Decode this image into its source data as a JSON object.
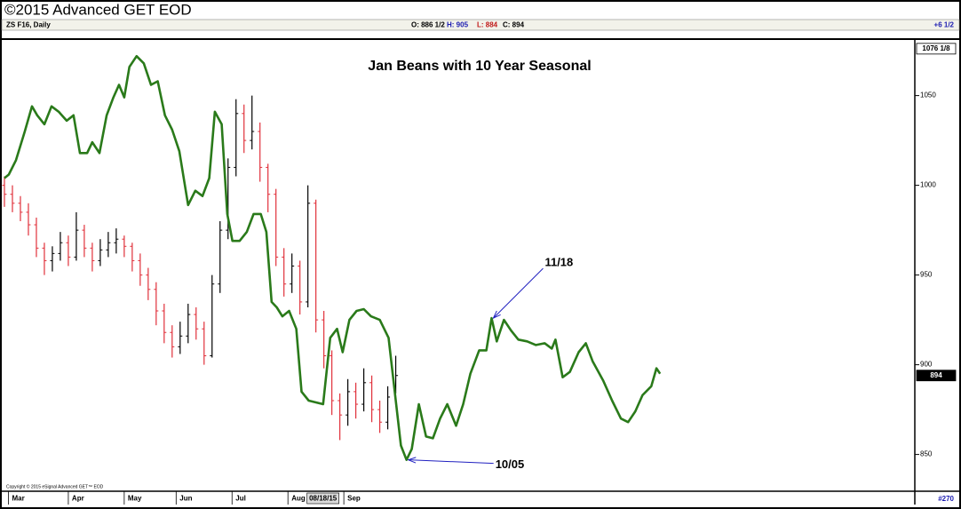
{
  "header": {
    "title": "©2015 Advanced GET EOD",
    "symbol": "ZS F16, Daily",
    "quote": [
      "O: 886 1/2",
      "H: 905",
      "L: 884",
      "C: 894"
    ],
    "quote_colors": [
      "#000000",
      "#1a1ab0",
      "#c01818",
      "#000000"
    ],
    "change": "+6 1/2",
    "bar_count": "#270",
    "copyright": "Copyright © 2015 eSignal Advanced GET™ EOD"
  },
  "chart_data": {
    "type": "ohlc",
    "title": "Jan Beans with 10 Year Seasonal",
    "xlim": [
      0,
      228
    ],
    "xticks": [
      {
        "value": 1,
        "label": "Mar"
      },
      {
        "value": 16,
        "label": "Apr"
      },
      {
        "value": 30,
        "label": "May"
      },
      {
        "value": 43,
        "label": "Jun"
      },
      {
        "value": 57,
        "label": "Jul"
      },
      {
        "value": 71,
        "label": "Aug"
      },
      {
        "value": 85,
        "label": "Sep"
      }
    ],
    "cursor_date": {
      "value": 76,
      "label": "08/18/15"
    },
    "ylim": [
      830,
      1081
    ],
    "yticks": [
      850,
      900,
      950,
      1000,
      1050
    ],
    "price_markers": [
      {
        "value": 1076.125,
        "label": "1076 1/8"
      },
      {
        "value": 894,
        "label": "894"
      }
    ],
    "ohlc": {
      "up_color": "#000000",
      "down_color": "#e0303a",
      "x": [
        0,
        2,
        4,
        6,
        8,
        10,
        12,
        14,
        16,
        18,
        20,
        22,
        24,
        26,
        28,
        30,
        32,
        34,
        36,
        38,
        40,
        42,
        44,
        46,
        48,
        50,
        52,
        54,
        56,
        58,
        60,
        62,
        64,
        66,
        68,
        70,
        72,
        74,
        76,
        78,
        80,
        82,
        84,
        86,
        88,
        90,
        92,
        94,
        96,
        98
      ],
      "open": [
        1000,
        995,
        990,
        985,
        978,
        965,
        958,
        962,
        968,
        960,
        975,
        965,
        958,
        964,
        968,
        970,
        966,
        958,
        950,
        942,
        930,
        918,
        910,
        916,
        928,
        920,
        905,
        945,
        975,
        1010,
        1040,
        1025,
        1030,
        1010,
        995,
        960,
        945,
        955,
        935,
        990,
        925,
        905,
        880,
        872,
        885,
        878,
        890,
        875,
        868,
        886.5
      ],
      "high": [
        1005,
        1000,
        994,
        990,
        982,
        968,
        966,
        974,
        972,
        985,
        978,
        968,
        970,
        974,
        976,
        972,
        968,
        962,
        954,
        946,
        934,
        922,
        924,
        934,
        932,
        924,
        950,
        980,
        1015,
        1048,
        1045,
        1050,
        1035,
        1012,
        998,
        965,
        962,
        958,
        1000,
        992,
        930,
        908,
        884,
        892,
        890,
        898,
        894,
        880,
        888,
        905
      ],
      "low": [
        988,
        985,
        980,
        972,
        960,
        950,
        952,
        958,
        955,
        958,
        960,
        952,
        955,
        960,
        962,
        960,
        952,
        944,
        936,
        922,
        912,
        904,
        906,
        912,
        914,
        900,
        904,
        940,
        970,
        1005,
        1018,
        1020,
        1002,
        985,
        955,
        938,
        940,
        928,
        932,
        918,
        898,
        872,
        858,
        866,
        870,
        874,
        868,
        862,
        864,
        884
      ],
      "close": [
        995,
        990,
        985,
        978,
        965,
        958,
        962,
        968,
        960,
        975,
        965,
        958,
        964,
        968,
        970,
        966,
        958,
        950,
        942,
        930,
        918,
        910,
        916,
        928,
        920,
        905,
        945,
        975,
        1010,
        1040,
        1025,
        1030,
        1010,
        995,
        960,
        945,
        955,
        935,
        990,
        925,
        905,
        880,
        872,
        885,
        878,
        890,
        875,
        868,
        882,
        894
      ]
    },
    "seasonal": {
      "color": "#2a7a1a",
      "x": [
        0,
        1.1,
        2.9,
        5.1,
        6.9,
        8.2,
        10,
        11.8,
        13.6,
        15.6,
        17.3,
        18.9,
        20.7,
        22,
        23.8,
        25.6,
        27.3,
        28.7,
        30,
        31.3,
        33.1,
        34.9,
        36.7,
        38.4,
        40.2,
        42,
        43.8,
        46,
        47.8,
        49.6,
        51.3,
        52.7,
        54.4,
        55.8,
        57.1,
        58.9,
        60.7,
        62.4,
        64.2,
        65.6,
        66.9,
        68.2,
        69.6,
        71.3,
        73.1,
        74.4,
        76.2,
        78,
        79.8,
        81.6,
        83.3,
        84.7,
        86.4,
        88.2,
        90,
        91.8,
        94,
        96.2,
        98,
        99.3,
        100.7,
        102,
        103.8,
        105.6,
        107.3,
        109.1,
        110.9,
        113.1,
        114.9,
        116.7,
        118.9,
        120.7,
        122,
        123.3,
        125.1,
        126.9,
        128.7,
        130.9,
        133.1,
        135.3,
        137.1,
        138,
        139.8,
        141.6,
        143.8,
        145.6,
        147.3,
        150,
        152.2,
        154.4,
        156.2,
        158,
        159.8,
        162,
        163.3,
        164.2
      ],
      "values": [
        1004,
        1006,
        1014,
        1030,
        1044,
        1039,
        1034,
        1044,
        1041,
        1036,
        1039,
        1018,
        1018,
        1024,
        1018,
        1039,
        1049,
        1056,
        1049,
        1066,
        1072,
        1068,
        1056,
        1058,
        1039,
        1031,
        1019,
        989,
        997,
        994,
        1004,
        1041,
        1034,
        984,
        969,
        969,
        974,
        984,
        984,
        974,
        935,
        932,
        927,
        930,
        920,
        885,
        880,
        879,
        878,
        915,
        920,
        907,
        925,
        930,
        931,
        927,
        925,
        915,
        880,
        855,
        847,
        853,
        878,
        860,
        859,
        870,
        878,
        866,
        878,
        895,
        908,
        908,
        926,
        913,
        925,
        919,
        914,
        913,
        911,
        912,
        909,
        914,
        893,
        896,
        907,
        912,
        902,
        891,
        880,
        870,
        868,
        874,
        883,
        888,
        898,
        895
      ]
    },
    "annotations": [
      {
        "label": "11/18",
        "x": 122,
        "value": 926
      },
      {
        "label": "10/05",
        "x": 100.7,
        "value": 847
      }
    ],
    "annotation_color": "#2020c0"
  }
}
